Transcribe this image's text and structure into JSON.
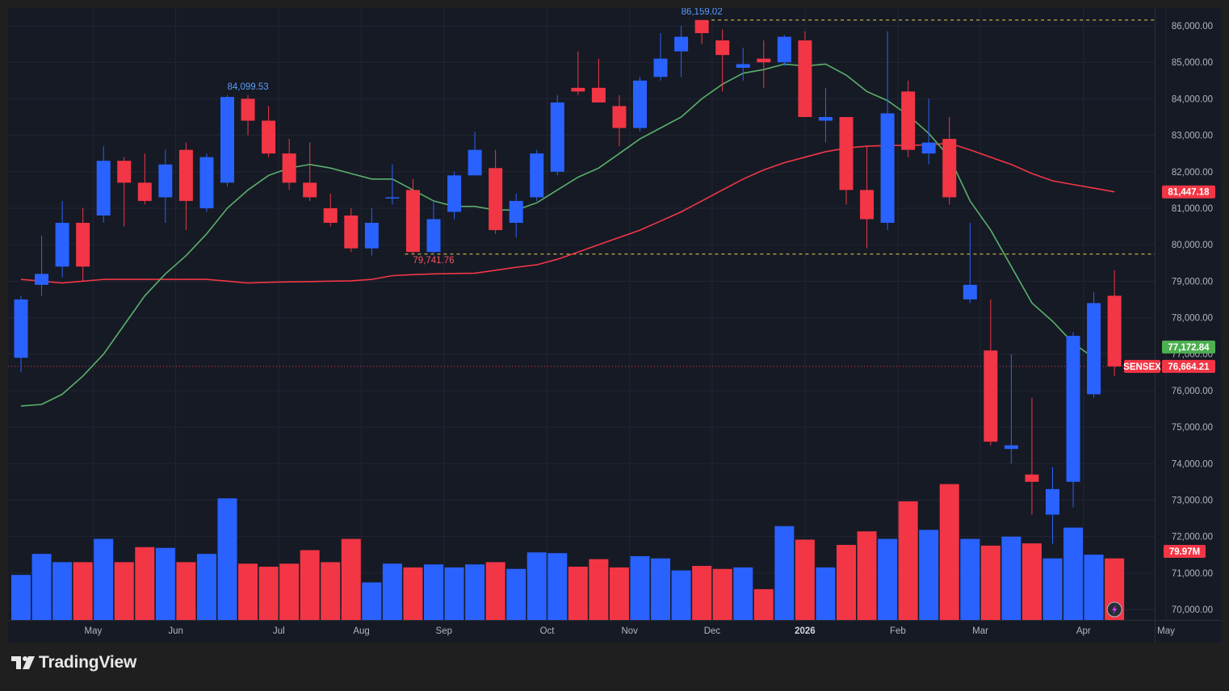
{
  "chart_data": {
    "type": "candlestick",
    "symbol": "SENSEX",
    "interval": "weekly",
    "ylim": [
      69700,
      86700
    ],
    "y_ticks": [
      "86,000.00",
      "85,000.00",
      "84,000.00",
      "83,000.00",
      "82,000.00",
      "81,000.00",
      "80,000.00",
      "79,000.00",
      "78,000.00",
      "77,000.00",
      "76,000.00",
      "75,000.00",
      "74,000.00",
      "73,000.00",
      "72,000.00",
      "71,000.00",
      "70,000.00"
    ],
    "y_tick_values": [
      86000,
      85000,
      84000,
      83000,
      82000,
      81000,
      80000,
      79000,
      78000,
      77000,
      76000,
      75000,
      74000,
      73000,
      72000,
      71000,
      70000
    ],
    "x_labels": [
      {
        "label": "May",
        "bar": 3.5
      },
      {
        "label": "Jun",
        "bar": 7.5
      },
      {
        "label": "Jul",
        "bar": 12.5
      },
      {
        "label": "Aug",
        "bar": 16.5
      },
      {
        "label": "Sep",
        "bar": 20.5
      },
      {
        "label": "Oct",
        "bar": 25.5
      },
      {
        "label": "Nov",
        "bar": 29.5
      },
      {
        "label": "Dec",
        "bar": 33.5
      },
      {
        "label": "2026",
        "bar": 38.0
      },
      {
        "label": "Feb",
        "bar": 42.5
      },
      {
        "label": "Mar",
        "bar": 46.5
      },
      {
        "label": "Apr",
        "bar": 51.5
      },
      {
        "label": "May",
        "bar": 55.5
      }
    ],
    "candles": [
      {
        "o": 76900,
        "h": 78600,
        "l": 76500,
        "c": 78500
      },
      {
        "o": 78900,
        "h": 80250,
        "l": 78600,
        "c": 79200
      },
      {
        "o": 79400,
        "h": 81200,
        "l": 79100,
        "c": 80600
      },
      {
        "o": 80600,
        "h": 81000,
        "l": 79000,
        "c": 79400
      },
      {
        "o": 80800,
        "h": 82700,
        "l": 80600,
        "c": 82300
      },
      {
        "o": 82300,
        "h": 82400,
        "l": 80500,
        "c": 81700
      },
      {
        "o": 81700,
        "h": 82500,
        "l": 81100,
        "c": 81200
      },
      {
        "o": 81300,
        "h": 82600,
        "l": 80600,
        "c": 82200
      },
      {
        "o": 82600,
        "h": 82800,
        "l": 80400,
        "c": 81200
      },
      {
        "o": 81000,
        "h": 82500,
        "l": 80900,
        "c": 82400
      },
      {
        "o": 81700,
        "h": 84099,
        "l": 81600,
        "c": 84050
      },
      {
        "o": 84000,
        "h": 84100,
        "l": 83000,
        "c": 83400
      },
      {
        "o": 83400,
        "h": 83800,
        "l": 82400,
        "c": 82500
      },
      {
        "o": 82500,
        "h": 82900,
        "l": 81500,
        "c": 81700
      },
      {
        "o": 81700,
        "h": 82800,
        "l": 81200,
        "c": 81300
      },
      {
        "o": 81000,
        "h": 81400,
        "l": 80500,
        "c": 80600
      },
      {
        "o": 80800,
        "h": 81000,
        "l": 79800,
        "c": 79900
      },
      {
        "o": 79900,
        "h": 81000,
        "l": 79700,
        "c": 80600
      },
      {
        "o": 81300,
        "h": 82200,
        "l": 81100,
        "c": 81300
      },
      {
        "o": 81500,
        "h": 81800,
        "l": 79742,
        "c": 79800
      },
      {
        "o": 79800,
        "h": 81200,
        "l": 79742,
        "c": 80700
      },
      {
        "o": 80900,
        "h": 82000,
        "l": 80700,
        "c": 81900
      },
      {
        "o": 81900,
        "h": 83100,
        "l": 81900,
        "c": 82600
      },
      {
        "o": 82100,
        "h": 82600,
        "l": 80300,
        "c": 80400
      },
      {
        "o": 80600,
        "h": 81400,
        "l": 80200,
        "c": 81200
      },
      {
        "o": 81300,
        "h": 82600,
        "l": 81200,
        "c": 82500
      },
      {
        "o": 82000,
        "h": 84100,
        "l": 81900,
        "c": 83900
      },
      {
        "o": 84300,
        "h": 85300,
        "l": 84100,
        "c": 84200
      },
      {
        "o": 84300,
        "h": 85100,
        "l": 83900,
        "c": 83900
      },
      {
        "o": 83800,
        "h": 84100,
        "l": 82700,
        "c": 83200
      },
      {
        "o": 83200,
        "h": 84600,
        "l": 83100,
        "c": 84500
      },
      {
        "o": 84600,
        "h": 85800,
        "l": 84500,
        "c": 85100
      },
      {
        "o": 85300,
        "h": 86000,
        "l": 84600,
        "c": 85700
      },
      {
        "o": 86159,
        "h": 86159,
        "l": 85500,
        "c": 85800
      },
      {
        "o": 85600,
        "h": 85900,
        "l": 84200,
        "c": 85200
      },
      {
        "o": 84850,
        "h": 85400,
        "l": 84500,
        "c": 84950
      },
      {
        "o": 85100,
        "h": 85600,
        "l": 84300,
        "c": 85000
      },
      {
        "o": 85000,
        "h": 85750,
        "l": 84900,
        "c": 85700
      },
      {
        "o": 85600,
        "h": 85850,
        "l": 83500,
        "c": 83500
      },
      {
        "o": 83400,
        "h": 84300,
        "l": 82800,
        "c": 83500
      },
      {
        "o": 83500,
        "h": 83500,
        "l": 81100,
        "c": 81500
      },
      {
        "o": 81500,
        "h": 82700,
        "l": 79900,
        "c": 80700
      },
      {
        "o": 80600,
        "h": 85850,
        "l": 80400,
        "c": 83600
      },
      {
        "o": 84200,
        "h": 84500,
        "l": 82400,
        "c": 82600
      },
      {
        "o": 82500,
        "h": 84000,
        "l": 82200,
        "c": 82800
      },
      {
        "o": 82900,
        "h": 83500,
        "l": 81100,
        "c": 81300
      },
      {
        "o": 78500,
        "h": 80600,
        "l": 78400,
        "c": 78900
      },
      {
        "o": 77100,
        "h": 78500,
        "l": 74500,
        "c": 74600
      },
      {
        "o": 74400,
        "h": 77000,
        "l": 74000,
        "c": 74500
      },
      {
        "o": 73700,
        "h": 75800,
        "l": 72600,
        "c": 73500
      },
      {
        "o": 72600,
        "h": 73900,
        "l": 71800,
        "c": 73300
      },
      {
        "o": 73500,
        "h": 77600,
        "l": 72800,
        "c": 77500
      },
      {
        "o": 75900,
        "h": 78700,
        "l": 75800,
        "c": 78400
      },
      {
        "o": 78600,
        "h": 79300,
        "l": 76400,
        "c": 76664
      }
    ],
    "volume": {
      "label": "79.97M",
      "values": [
        60,
        88,
        77,
        77,
        108,
        77,
        97,
        96,
        77,
        88,
        162,
        75,
        71,
        75,
        93,
        77,
        108,
        50,
        75,
        70,
        74,
        70,
        74,
        77,
        68,
        90,
        89,
        71,
        81,
        70,
        85,
        82,
        66,
        72,
        68,
        70,
        41,
        125,
        107,
        70,
        100,
        118,
        108,
        158,
        120,
        181,
        108,
        99,
        111,
        102,
        82,
        123,
        87,
        82
      ]
    },
    "ma_short": {
      "color": "#5ab06a",
      "points": [
        [
          0,
          75580
        ],
        [
          1,
          75620
        ],
        [
          2,
          75900
        ],
        [
          3,
          76400
        ],
        [
          4,
          77000
        ],
        [
          5,
          77800
        ],
        [
          6,
          78600
        ],
        [
          7,
          79200
        ],
        [
          8,
          79700
        ],
        [
          9,
          80300
        ],
        [
          10,
          81000
        ],
        [
          11,
          81500
        ],
        [
          12,
          81900
        ],
        [
          13,
          82100
        ],
        [
          14,
          82200
        ],
        [
          15,
          82100
        ],
        [
          16,
          81950
        ],
        [
          17,
          81800
        ],
        [
          18,
          81800
        ],
        [
          19,
          81500
        ],
        [
          20,
          81200
        ],
        [
          21,
          81050
        ],
        [
          22,
          81050
        ],
        [
          23,
          80950
        ],
        [
          24,
          80950
        ],
        [
          25,
          81150
        ],
        [
          26,
          81500
        ],
        [
          27,
          81850
        ],
        [
          28,
          82100
        ],
        [
          29,
          82500
        ],
        [
          30,
          82900
        ],
        [
          31,
          83200
        ],
        [
          32,
          83500
        ],
        [
          33,
          84000
        ],
        [
          34,
          84400
        ],
        [
          35,
          84700
        ],
        [
          36,
          84800
        ],
        [
          37,
          84950
        ],
        [
          38,
          84900
        ],
        [
          39,
          84950
        ],
        [
          40,
          84650
        ],
        [
          41,
          84200
        ],
        [
          42,
          83950
        ],
        [
          43,
          83550
        ],
        [
          44,
          83050
        ],
        [
          45,
          82400
        ],
        [
          46,
          81200
        ],
        [
          47,
          80400
        ],
        [
          48,
          79400
        ],
        [
          49,
          78400
        ],
        [
          50,
          77900
        ],
        [
          51,
          77300
        ],
        [
          52,
          76900
        ]
      ]
    },
    "ma_long": {
      "color": "#f23645",
      "points": [
        [
          0,
          79050
        ],
        [
          1,
          79000
        ],
        [
          2,
          78950
        ],
        [
          3,
          79000
        ],
        [
          4,
          79050
        ],
        [
          5,
          79050
        ],
        [
          6,
          79050
        ],
        [
          7,
          79050
        ],
        [
          8,
          79050
        ],
        [
          9,
          79050
        ],
        [
          10,
          79000
        ],
        [
          11,
          78950
        ],
        [
          12,
          78970
        ],
        [
          13,
          78980
        ],
        [
          14,
          78990
        ],
        [
          15,
          79000
        ],
        [
          16,
          79010
        ],
        [
          17,
          79050
        ],
        [
          18,
          79150
        ],
        [
          19,
          79180
        ],
        [
          20,
          79200
        ],
        [
          21,
          79210
        ],
        [
          22,
          79220
        ],
        [
          23,
          79300
        ],
        [
          24,
          79380
        ],
        [
          25,
          79450
        ],
        [
          26,
          79600
        ],
        [
          27,
          79800
        ],
        [
          28,
          80000
        ],
        [
          29,
          80200
        ],
        [
          30,
          80400
        ],
        [
          31,
          80650
        ],
        [
          32,
          80900
        ],
        [
          33,
          81200
        ],
        [
          34,
          81500
        ],
        [
          35,
          81800
        ],
        [
          36,
          82050
        ],
        [
          37,
          82250
        ],
        [
          38,
          82400
        ],
        [
          39,
          82550
        ],
        [
          40,
          82650
        ],
        [
          41,
          82700
        ],
        [
          42,
          82720
        ],
        [
          43,
          82720
        ],
        [
          44,
          82740
        ],
        [
          45,
          82780
        ],
        [
          46,
          82600
        ],
        [
          47,
          82400
        ],
        [
          48,
          82200
        ],
        [
          49,
          81950
        ],
        [
          50,
          81750
        ],
        [
          51,
          81650
        ],
        [
          52,
          81550
        ],
        [
          53,
          81447
        ]
      ]
    },
    "annotations": [
      {
        "text": "84,099.53",
        "bar": 11,
        "value": 84099.53,
        "kind": "high"
      },
      {
        "text": "86,159.02",
        "bar": 33,
        "value": 86159.02,
        "kind": "high"
      },
      {
        "text": "79,741.76",
        "bar": 20,
        "value": 79741.76,
        "kind": "low"
      }
    ],
    "hlines": [
      86159.02,
      79741.76
    ],
    "price_labels": [
      {
        "text": "81,447.18",
        "value": 81447.18,
        "bg": "#f23645",
        "fg": "#ffffff"
      },
      {
        "text": "77,172.84",
        "value": 77172.84,
        "bg": "#4caf50",
        "fg": "#ffffff"
      },
      {
        "text": "76,664.21",
        "value": 76664.21,
        "bg": "#f23645",
        "fg": "#ffffff",
        "tag": "SENSEX"
      }
    ],
    "colors": {
      "up": "#2962ff",
      "down": "#f23645",
      "grid": "#222632",
      "text": "#b2b5be",
      "bg": "#161a25"
    }
  },
  "footer": {
    "brand": "TradingView"
  }
}
